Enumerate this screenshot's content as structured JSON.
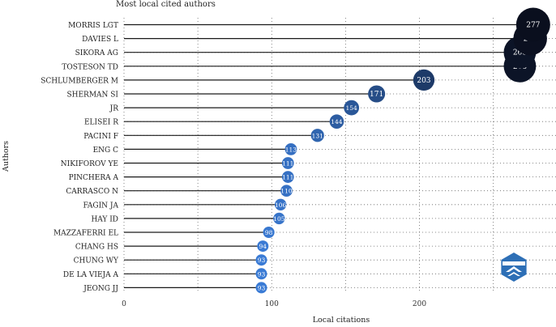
{
  "chart_data": {
    "type": "lollipop",
    "title": "Most local cited authors",
    "xlabel": "Local citations",
    "ylabel": "Authors",
    "xlim": [
      0,
      290
    ],
    "xticks": [
      0,
      100,
      200
    ],
    "grid": true,
    "categories": [
      "MORRIS LGT",
      "DAVIES L",
      "SIKORA AG",
      "TOSTESON TD",
      "SCHLUMBERGER M",
      "SHERMAN SI",
      "JR",
      "ELISEI R",
      "PACINI F",
      "ENG C",
      "NIKIFOROV YE",
      "PINCHERA A",
      "CARRASCO N",
      "FAGIN JA",
      "HAY ID",
      "MAZZAFERRI EL",
      "CHANG HS",
      "CHUNG WY",
      "DE LA VIEJA A",
      "JEONG JJ"
    ],
    "values": [
      277,
      275,
      268,
      268,
      203,
      171,
      154,
      144,
      131,
      113,
      111,
      111,
      110,
      106,
      105,
      98,
      94,
      93,
      93,
      93
    ],
    "color_scale": {
      "low": "#3a7bd5",
      "high": "#0a0f1e"
    }
  },
  "watermark": {
    "name": "bibliometrix-logo",
    "color": "#2d6fb6"
  }
}
